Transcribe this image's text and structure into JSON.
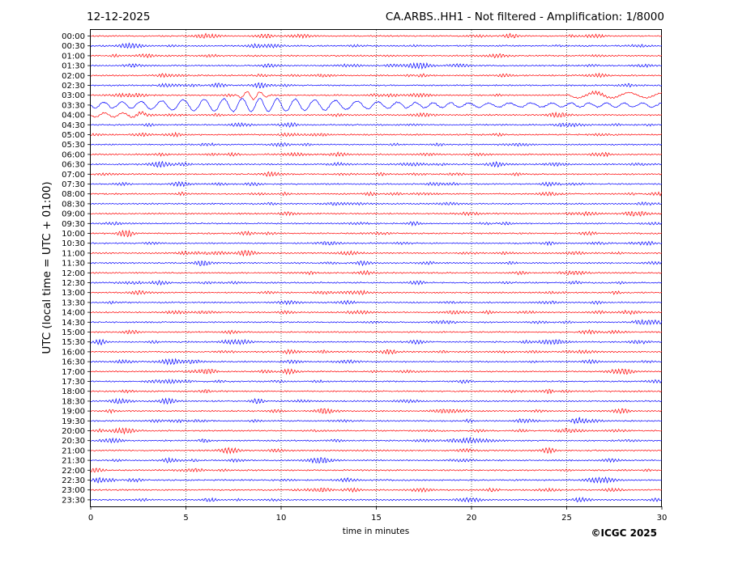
{
  "header": {
    "date": "12-12-2025",
    "title": "CA.ARBS..HH1 - Not filtered - Amplification: 1/8000"
  },
  "footer": {
    "copyright": "©ICGC 2025"
  },
  "colors": {
    "red_trace": "#ff0000",
    "blue_trace": "#0000ff",
    "grid": "#000000"
  },
  "chart_data": {
    "type": "line",
    "title": "CA.ARBS..HH1 - Not filtered - Amplification: 1/8000",
    "xlabel": "time in minutes",
    "ylabel": "UTC (local time = UTC + 01:00)",
    "xlim": [
      0,
      30
    ],
    "x_ticks": [
      "0",
      "5",
      "10",
      "15",
      "20",
      "25",
      "30"
    ],
    "grid": "vertical dotted lines at each x tick",
    "rows": [
      "00:00",
      "00:30",
      "01:00",
      "01:30",
      "02:00",
      "02:30",
      "03:00",
      "03:30",
      "04:00",
      "04:30",
      "05:00",
      "05:30",
      "06:00",
      "06:30",
      "07:00",
      "07:30",
      "08:00",
      "08:30",
      "09:00",
      "09:30",
      "10:00",
      "10:30",
      "11:00",
      "11:30",
      "12:00",
      "12:30",
      "13:00",
      "13:30",
      "14:00",
      "14:30",
      "15:00",
      "15:30",
      "16:00",
      "16:30",
      "17:00",
      "17:30",
      "18:00",
      "18:30",
      "19:00",
      "19:30",
      "20:00",
      "20:30",
      "21:00",
      "21:30",
      "22:00",
      "22:30",
      "23:00",
      "23:30"
    ],
    "row_colors": "alternating red (hour rows) and blue (half-hour rows)",
    "event": {
      "row": "03:30",
      "start_minute": 0,
      "peak_minute": 8.5,
      "end_minute": 30
    }
  }
}
